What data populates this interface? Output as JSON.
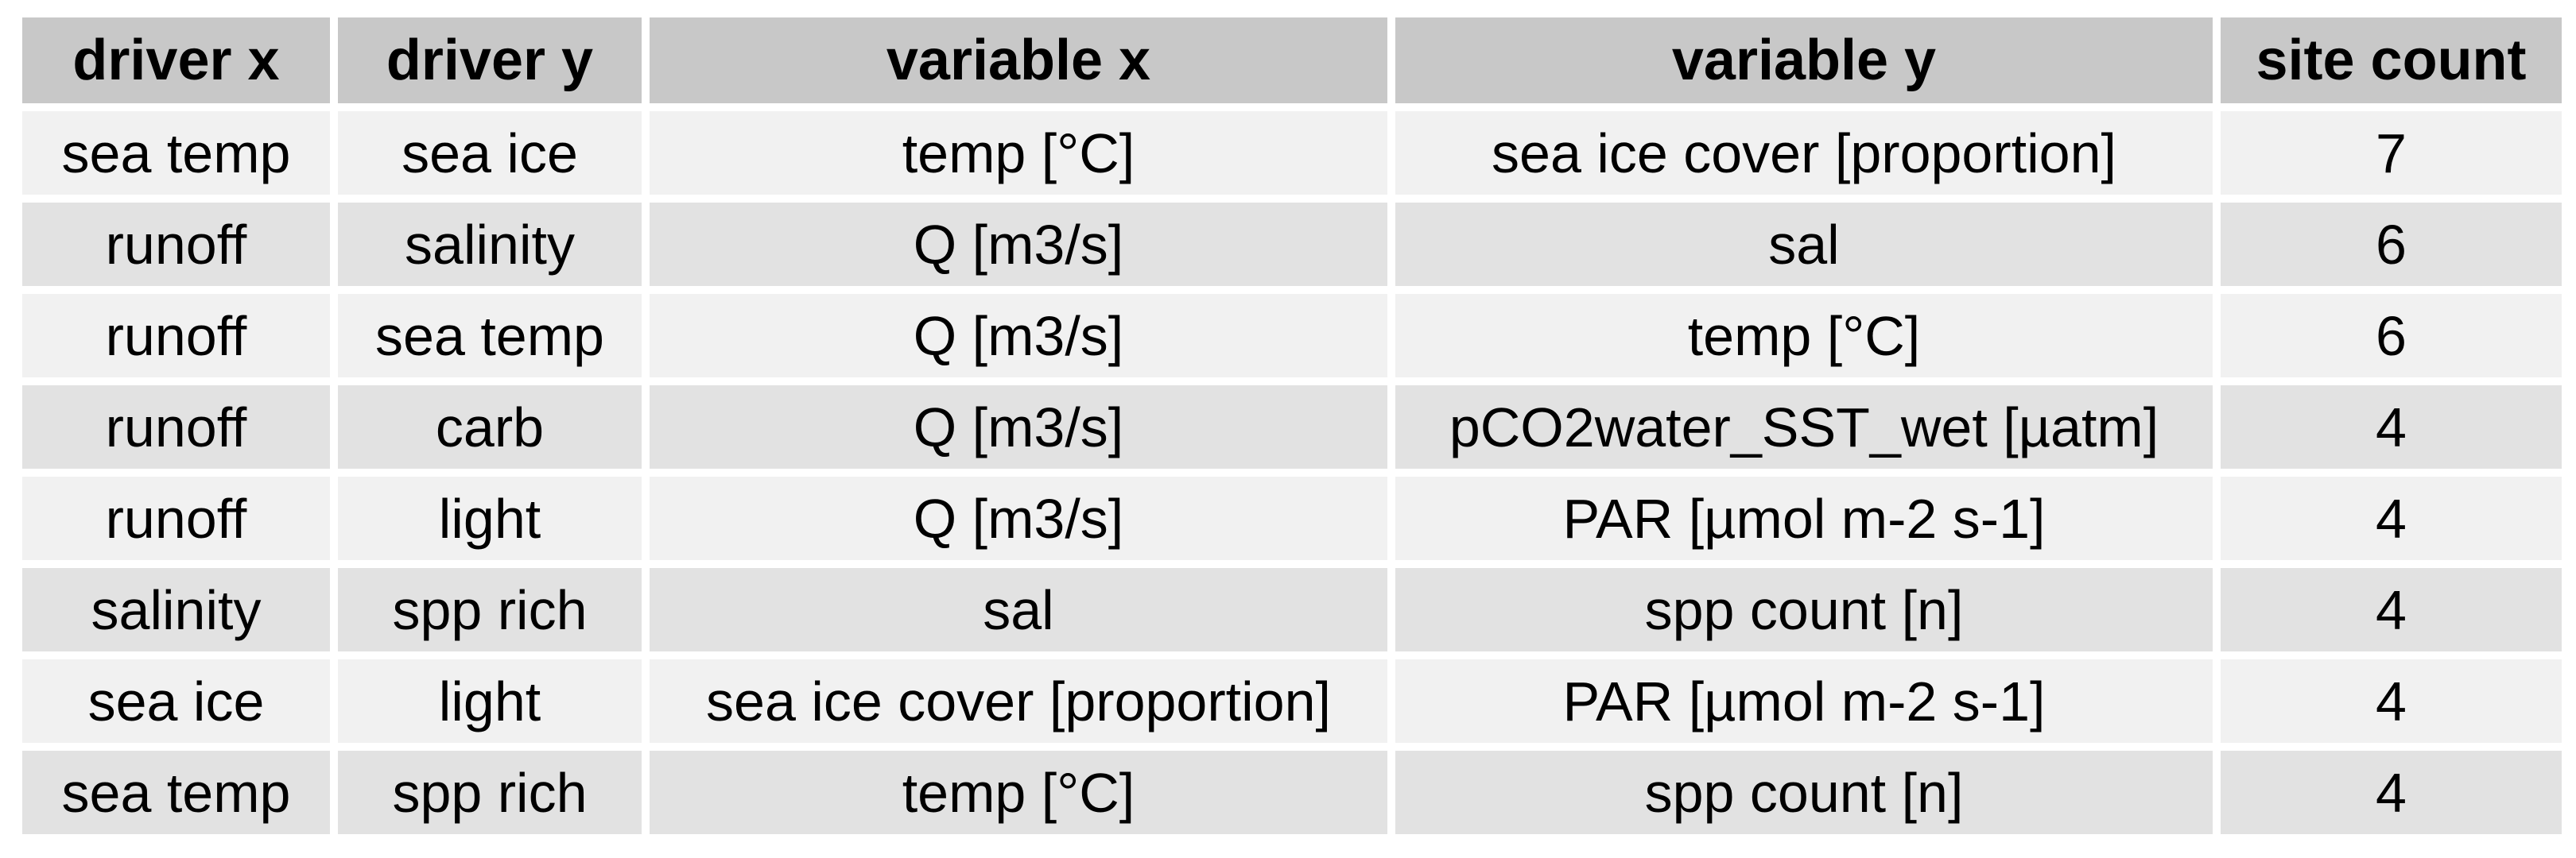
{
  "chart_data": {
    "type": "table",
    "columns": [
      "driver x",
      "driver y",
      "variable x",
      "variable y",
      "site count"
    ],
    "rows": [
      [
        "sea temp",
        "sea ice",
        "temp [°C]",
        "sea ice cover [proportion]",
        "7"
      ],
      [
        "runoff",
        "salinity",
        "Q [m3/s]",
        "sal",
        "6"
      ],
      [
        "runoff",
        "sea temp",
        "Q [m3/s]",
        "temp [°C]",
        "6"
      ],
      [
        "runoff",
        "carb",
        "Q [m3/s]",
        "pCO2water_SST_wet [µatm]",
        "4"
      ],
      [
        "runoff",
        "light",
        "Q [m3/s]",
        "PAR [µmol m-2 s-1]",
        "4"
      ],
      [
        "salinity",
        "spp rich",
        "sal",
        "spp count [n]",
        "4"
      ],
      [
        "sea ice",
        "light",
        "sea ice cover [proportion]",
        "PAR [µmol m-2 s-1]",
        "4"
      ],
      [
        "sea temp",
        "spp rich",
        "temp [°C]",
        "spp count [n]",
        "4"
      ]
    ],
    "colors": {
      "header_bg": "#c8c8c8",
      "row_odd_bg": "#f1f1f1",
      "row_even_bg": "#e2e2e2"
    }
  }
}
